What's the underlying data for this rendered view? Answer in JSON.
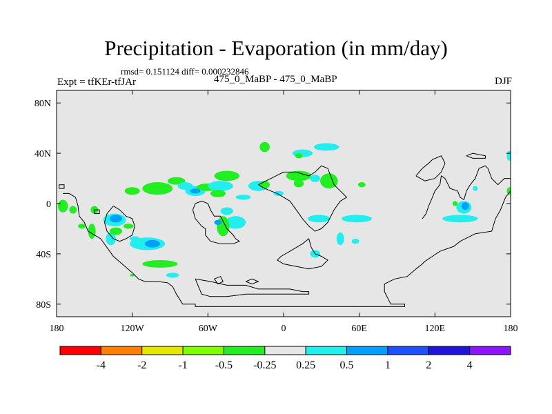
{
  "header": {
    "title": "Precipitation - Evaporation (in mm/day)",
    "stats": "rmsd= 0.151124 diff= 0.000232846",
    "experiment": "Expt = tfKEr-tfJAr",
    "cases": "475_0_MaBP - 475_0_MaBP",
    "season": "DJF"
  },
  "axes": {
    "x_ticks": [
      {
        "value": -180,
        "label": "180"
      },
      {
        "value": -120,
        "label": "120W"
      },
      {
        "value": -60,
        "label": "60W"
      },
      {
        "value": 0,
        "label": "0"
      },
      {
        "value": 60,
        "label": "60E"
      },
      {
        "value": 120,
        "label": "120E"
      },
      {
        "value": 180,
        "label": "180"
      }
    ],
    "y_ticks": [
      {
        "value": 80,
        "label": "80N"
      },
      {
        "value": 40,
        "label": "40N"
      },
      {
        "value": 0,
        "label": "0"
      },
      {
        "value": -40,
        "label": "40S"
      },
      {
        "value": -80,
        "label": "80S"
      }
    ],
    "lon_range": [
      -180,
      180
    ],
    "lat_range": [
      -90,
      90
    ]
  },
  "colorbar": {
    "colors": [
      "#ff0000",
      "#ff8000",
      "#e6e600",
      "#80ff00",
      "#22ee22",
      "#e6e6e6",
      "#22eeee",
      "#00a0ff",
      "#1e50ff",
      "#1e14dc",
      "#8c14ff"
    ],
    "labels": [
      "-4",
      "-2",
      "-1",
      "-0.5",
      "-0.25",
      "0.25",
      "0.5",
      "1",
      "2",
      "4"
    ]
  },
  "map": {
    "background_color": "#e6e6e6",
    "coast_color": "#000000",
    "blobs": [
      {
        "lon": -175,
        "lat": -2,
        "rx": 4,
        "ry": 5,
        "color": "#22ee22"
      },
      {
        "lon": -167,
        "lat": -5,
        "rx": 3,
        "ry": 3,
        "color": "#22ee22"
      },
      {
        "lon": -150,
        "lat": -5,
        "rx": 3,
        "ry": 3,
        "color": "#22ee22"
      },
      {
        "lon": -152,
        "lat": -22,
        "rx": 3,
        "ry": 6,
        "color": "#22ee22"
      },
      {
        "lon": -137,
        "lat": -28,
        "rx": 4,
        "ry": 5,
        "color": "#22eeee"
      },
      {
        "lon": -133,
        "lat": -22,
        "rx": 5,
        "ry": 3,
        "color": "#22ee22"
      },
      {
        "lon": -118,
        "lat": -28,
        "rx": 4,
        "ry": 2,
        "color": "#22eeee"
      },
      {
        "lon": -134,
        "lat": -13,
        "rx": 9,
        "ry": 5,
        "color": "#22eeee"
      },
      {
        "lon": -133,
        "lat": -12,
        "rx": 5,
        "ry": 3,
        "color": "#00a0ff"
      },
      {
        "lon": -123,
        "lat": -18,
        "rx": 4,
        "ry": 2,
        "color": "#22ee22"
      },
      {
        "lon": -108,
        "lat": -32,
        "rx": 14,
        "ry": 5,
        "color": "#22eeee"
      },
      {
        "lon": -104,
        "lat": -32,
        "rx": 6,
        "ry": 3,
        "color": "#00a0ff"
      },
      {
        "lon": -98,
        "lat": -48,
        "rx": 14,
        "ry": 3,
        "color": "#22ee22"
      },
      {
        "lon": -88,
        "lat": -57,
        "rx": 5,
        "ry": 2,
        "color": "#22eeee"
      },
      {
        "lon": -120,
        "lat": 10,
        "rx": 6,
        "ry": 3,
        "color": "#22ee22"
      },
      {
        "lon": -100,
        "lat": 12,
        "rx": 12,
        "ry": 5,
        "color": "#22ee22"
      },
      {
        "lon": -85,
        "lat": 18,
        "rx": 7,
        "ry": 3,
        "color": "#22ee22"
      },
      {
        "lon": -78,
        "lat": 14,
        "rx": 6,
        "ry": 3,
        "color": "#22eeee"
      },
      {
        "lon": -70,
        "lat": 10,
        "rx": 8,
        "ry": 4,
        "color": "#22eeee"
      },
      {
        "lon": -70,
        "lat": 10,
        "rx": 4,
        "ry": 2,
        "color": "#00a0ff"
      },
      {
        "lon": -60,
        "lat": 13,
        "rx": 9,
        "ry": 3,
        "color": "#22ee22"
      },
      {
        "lon": -45,
        "lat": 22,
        "rx": 10,
        "ry": 4,
        "color": "#22ee22"
      },
      {
        "lon": -50,
        "lat": 14,
        "rx": 10,
        "ry": 4,
        "color": "#22eeee"
      },
      {
        "lon": -52,
        "lat": 8,
        "rx": 6,
        "ry": 3,
        "color": "#22ee22"
      },
      {
        "lon": -45,
        "lat": -6,
        "rx": 5,
        "ry": 3,
        "color": "#22eeee"
      },
      {
        "lon": -38,
        "lat": -15,
        "rx": 8,
        "ry": 5,
        "color": "#22eeee"
      },
      {
        "lon": -48,
        "lat": -18,
        "rx": 5,
        "ry": 8,
        "color": "#22ee22"
      },
      {
        "lon": -52,
        "lat": -15,
        "rx": 3,
        "ry": 2,
        "color": "#00a0ff"
      },
      {
        "lon": -32,
        "lat": 5,
        "rx": 6,
        "ry": 2,
        "color": "#22eeee"
      },
      {
        "lon": -20,
        "lat": 14,
        "rx": 8,
        "ry": 4,
        "color": "#22eeee"
      },
      {
        "lon": -15,
        "lat": 15,
        "rx": 4,
        "ry": 3,
        "color": "#22ee22"
      },
      {
        "lon": -15,
        "lat": 45,
        "rx": 4,
        "ry": 4,
        "color": "#22ee22"
      },
      {
        "lon": -4,
        "lat": 8,
        "rx": 4,
        "ry": 2,
        "color": "#22eeee"
      },
      {
        "lon": 12,
        "lat": 22,
        "rx": 10,
        "ry": 4,
        "color": "#22ee22"
      },
      {
        "lon": 15,
        "lat": 40,
        "rx": 8,
        "ry": 3,
        "color": "#22eeee"
      },
      {
        "lon": 12,
        "lat": 16,
        "rx": 4,
        "ry": 3,
        "color": "#22ee22"
      },
      {
        "lon": 34,
        "lat": 45,
        "rx": 10,
        "ry": 3,
        "color": "#22eeee"
      },
      {
        "lon": 12,
        "lat": 38,
        "rx": 3,
        "ry": 2,
        "color": "#22ee22"
      },
      {
        "lon": 36,
        "lat": 18,
        "rx": 7,
        "ry": 6,
        "color": "#22ee22"
      },
      {
        "lon": 25,
        "lat": 20,
        "rx": 4,
        "ry": 3,
        "color": "#22eeee"
      },
      {
        "lon": 62,
        "lat": 15,
        "rx": 3,
        "ry": 2,
        "color": "#22ee22"
      },
      {
        "lon": 28,
        "lat": -12,
        "rx": 9,
        "ry": 3,
        "color": "#22eeee"
      },
      {
        "lon": 58,
        "lat": -12,
        "rx": 12,
        "ry": 3,
        "color": "#22eeee"
      },
      {
        "lon": 45,
        "lat": -28,
        "rx": 3,
        "ry": 5,
        "color": "#22eeee"
      },
      {
        "lon": 25,
        "lat": -40,
        "rx": 4,
        "ry": 3,
        "color": "#22eeee"
      },
      {
        "lon": 57,
        "lat": -30,
        "rx": 3,
        "ry": 2,
        "color": "#22eeee"
      },
      {
        "lon": 140,
        "lat": -12,
        "rx": 14,
        "ry": 3,
        "color": "#22eeee"
      },
      {
        "lon": 143,
        "lat": -3,
        "rx": 6,
        "ry": 5,
        "color": "#22eeee"
      },
      {
        "lon": 144,
        "lat": -2,
        "rx": 3,
        "ry": 3,
        "color": "#00a0ff"
      },
      {
        "lon": 136,
        "lat": 0,
        "rx": 2,
        "ry": 2,
        "color": "#22ee22"
      },
      {
        "lon": 152,
        "lat": 12,
        "rx": 2,
        "ry": 2,
        "color": "#22eeee"
      },
      {
        "lon": 179,
        "lat": 38,
        "rx": 2,
        "ry": 4,
        "color": "#22eeee"
      },
      {
        "lon": 179,
        "lat": 10,
        "rx": 2,
        "ry": 3,
        "color": "#22ee22"
      },
      {
        "lon": -120,
        "lat": -57,
        "rx": 2,
        "ry": 1,
        "color": "#22ee22"
      },
      {
        "lon": -160,
        "lat": -18,
        "rx": 3,
        "ry": 2,
        "color": "#22ee22"
      },
      {
        "lon": -98,
        "lat": 12,
        "rx": 3,
        "ry": 2,
        "color": "#22ee22"
      }
    ],
    "coastlines": [
      [
        [
          -175,
          8
        ],
        [
          -170,
          8
        ],
        [
          -165,
          5
        ],
        [
          -163,
          -2
        ],
        [
          -162,
          -10
        ],
        [
          -158,
          -15
        ],
        [
          -155,
          -22
        ],
        [
          -150,
          -25
        ],
        [
          -145,
          -28
        ],
        [
          -140,
          -35
        ],
        [
          -135,
          -42
        ],
        [
          -128,
          -48
        ],
        [
          -120,
          -55
        ],
        [
          -115,
          -60
        ],
        [
          -110,
          -62
        ],
        [
          -100,
          -62
        ],
        [
          -92,
          -63
        ],
        [
          -88,
          -66
        ],
        [
          -85,
          -72
        ],
        [
          -80,
          -80
        ],
        [
          -70,
          -80
        ],
        [
          -70,
          -82
        ],
        [
          96,
          -82
        ],
        [
          96,
          -80
        ],
        [
          85,
          -80
        ],
        [
          80,
          -70
        ],
        [
          80,
          -64
        ],
        [
          88,
          -60
        ],
        [
          98,
          -58
        ],
        [
          105,
          -52
        ],
        [
          110,
          -48
        ],
        [
          112,
          -46
        ],
        [
          118,
          -42
        ],
        [
          124,
          -38
        ],
        [
          135,
          -34
        ],
        [
          140,
          -30
        ],
        [
          148,
          -26
        ],
        [
          152,
          -24
        ],
        [
          165,
          -22
        ],
        [
          168,
          -12
        ],
        [
          172,
          -5
        ],
        [
          176,
          5
        ],
        [
          180,
          10
        ],
        [
          180,
          20
        ],
        [
          175,
          20
        ],
        [
          170,
          15
        ],
        [
          165,
          20
        ],
        [
          162,
          28
        ],
        [
          160,
          30
        ],
        [
          155,
          28
        ],
        [
          152,
          20
        ],
        [
          148,
          15
        ],
        [
          145,
          10
        ],
        [
          143,
          3
        ],
        [
          140,
          5
        ],
        [
          138,
          10
        ],
        [
          132,
          12
        ],
        [
          130,
          16
        ],
        [
          128,
          20
        ],
        [
          125,
          22
        ],
        [
          124,
          15
        ],
        [
          120,
          10
        ],
        [
          118,
          5
        ],
        [
          115,
          -2
        ],
        [
          113,
          -8
        ],
        [
          110,
          -12
        ]
      ],
      [
        [
          -70,
          -60
        ],
        [
          -58,
          -62
        ],
        [
          -45,
          -65
        ],
        [
          -30,
          -65
        ],
        [
          -20,
          -68
        ],
        [
          5,
          -68
        ],
        [
          15,
          -70
        ],
        [
          20,
          -70
        ],
        [
          20,
          -72
        ],
        [
          -10,
          -72
        ],
        [
          -30,
          -72
        ],
        [
          -45,
          -74
        ],
        [
          -58,
          -74
        ],
        [
          -65,
          -72
        ],
        [
          -70,
          -60
        ]
      ],
      [
        [
          -70,
          0
        ],
        [
          -65,
          2
        ],
        [
          -60,
          0
        ],
        [
          -58,
          -5
        ],
        [
          -55,
          -10
        ],
        [
          -50,
          -10
        ],
        [
          -45,
          -20
        ],
        [
          -40,
          -25
        ],
        [
          -38,
          -28
        ],
        [
          -35,
          -30
        ],
        [
          -40,
          -32
        ],
        [
          -50,
          -32
        ],
        [
          -58,
          -30
        ],
        [
          -62,
          -25
        ],
        [
          -62,
          -20
        ],
        [
          -65,
          -18
        ],
        [
          -70,
          -12
        ],
        [
          -72,
          -5
        ],
        [
          -70,
          0
        ]
      ],
      [
        [
          -20,
          15
        ],
        [
          -10,
          20
        ],
        [
          0,
          25
        ],
        [
          10,
          25
        ],
        [
          20,
          22
        ],
        [
          25,
          25
        ],
        [
          30,
          30
        ],
        [
          35,
          28
        ],
        [
          40,
          15
        ],
        [
          45,
          10
        ],
        [
          50,
          5
        ],
        [
          45,
          2
        ],
        [
          40,
          -5
        ],
        [
          35,
          -15
        ],
        [
          30,
          -20
        ],
        [
          25,
          -22
        ],
        [
          20,
          -18
        ],
        [
          15,
          -12
        ],
        [
          10,
          -5
        ],
        [
          5,
          2
        ],
        [
          0,
          5
        ],
        [
          -5,
          8
        ],
        [
          -10,
          10
        ],
        [
          -15,
          12
        ],
        [
          -20,
          15
        ]
      ],
      [
        [
          -2,
          -42
        ],
        [
          5,
          -38
        ],
        [
          15,
          -32
        ],
        [
          20,
          -28
        ],
        [
          22,
          -35
        ],
        [
          25,
          -40
        ],
        [
          30,
          -42
        ],
        [
          35,
          -45
        ],
        [
          30,
          -50
        ],
        [
          20,
          -52
        ],
        [
          10,
          -50
        ],
        [
          0,
          -48
        ],
        [
          -5,
          -45
        ],
        [
          -2,
          -42
        ]
      ],
      [
        [
          -135,
          -2
        ],
        [
          -130,
          -5
        ],
        [
          -125,
          -10
        ],
        [
          -120,
          -12
        ],
        [
          -118,
          -18
        ],
        [
          -120,
          -25
        ],
        [
          -125,
          -28
        ],
        [
          -130,
          -30
        ],
        [
          -135,
          -28
        ],
        [
          -140,
          -22
        ],
        [
          -142,
          -15
        ],
        [
          -140,
          -8
        ],
        [
          -135,
          -2
        ]
      ],
      [
        [
          -30,
          -62
        ],
        [
          -25,
          -60
        ],
        [
          -20,
          -62
        ],
        [
          -25,
          -64
        ],
        [
          -30,
          -62
        ]
      ],
      [
        [
          -55,
          -60
        ],
        [
          -50,
          -58
        ],
        [
          -48,
          -62
        ],
        [
          -52,
          -64
        ],
        [
          -55,
          -60
        ]
      ],
      [
        [
          105,
          22
        ],
        [
          110,
          28
        ],
        [
          115,
          32
        ],
        [
          118,
          35
        ],
        [
          125,
          38
        ],
        [
          128,
          32
        ],
        [
          125,
          25
        ],
        [
          120,
          20
        ],
        [
          112,
          18
        ],
        [
          105,
          22
        ]
      ],
      [
        [
          145,
          38
        ],
        [
          150,
          40
        ],
        [
          160,
          38
        ],
        [
          160,
          36
        ],
        [
          150,
          36
        ],
        [
          145,
          38
        ]
      ],
      [
        [
          -178,
          12
        ],
        [
          -174,
          12
        ],
        [
          -174,
          15
        ],
        [
          -178,
          15
        ],
        [
          -178,
          12
        ]
      ],
      [
        [
          -150,
          -8
        ],
        [
          -146,
          -8
        ],
        [
          -146,
          -5
        ],
        [
          -150,
          -5
        ],
        [
          -150,
          -8
        ]
      ]
    ]
  }
}
